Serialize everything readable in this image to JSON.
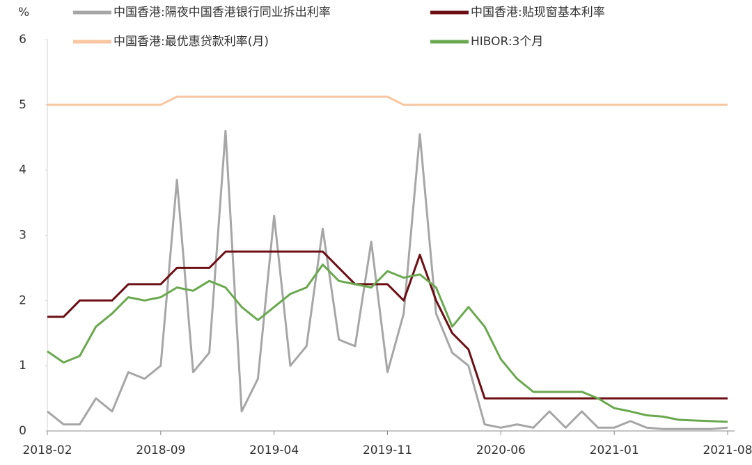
{
  "chart_data": {
    "type": "line",
    "y_label": "%",
    "x": [
      "2018-02",
      "2018-03",
      "2018-04",
      "2018-05",
      "2018-06",
      "2018-07",
      "2018-08",
      "2018-09",
      "2018-10",
      "2018-11",
      "2018-12",
      "2019-01",
      "2019-02",
      "2019-03",
      "2019-04",
      "2019-05",
      "2019-06",
      "2019-07",
      "2019-08",
      "2019-09",
      "2019-10",
      "2019-11",
      "2019-12",
      "2020-01",
      "2020-02",
      "2020-03",
      "2020-04",
      "2020-05",
      "2020-06",
      "2020-07",
      "2020-08",
      "2020-09",
      "2020-10",
      "2020-11",
      "2020-12",
      "2021-01",
      "2021-02",
      "2021-03",
      "2021-04",
      "2021-05",
      "2021-06",
      "2021-07",
      "2021-08"
    ],
    "xticks": [
      "2018-02",
      "2018-09",
      "2019-04",
      "2019-11",
      "2020-06",
      "2021-01",
      "2021-08"
    ],
    "ylim": [
      0,
      6
    ],
    "yticks": [
      0,
      1,
      2,
      3,
      4,
      5,
      6
    ],
    "series": [
      {
        "name": "中国香港:隔夜中国香港银行同业拆出利率",
        "color": "#a6a6a6",
        "values": [
          0.3,
          0.1,
          0.1,
          0.5,
          0.3,
          0.9,
          0.8,
          1.0,
          3.85,
          0.9,
          1.2,
          4.6,
          0.3,
          0.8,
          3.3,
          1.0,
          1.3,
          3.1,
          1.4,
          1.3,
          2.9,
          0.9,
          1.8,
          4.55,
          1.8,
          1.2,
          1.0,
          0.1,
          0.05,
          0.1,
          0.05,
          0.3,
          0.05,
          0.3,
          0.05,
          0.05,
          0.15,
          0.05,
          0.03,
          0.03,
          0.03,
          0.03,
          0.05
        ]
      },
      {
        "name": "中国香港:贴现窗基本利率",
        "color": "#6b0f14",
        "values": [
          1.75,
          1.75,
          2.0,
          2.0,
          2.0,
          2.25,
          2.25,
          2.25,
          2.5,
          2.5,
          2.5,
          2.75,
          2.75,
          2.75,
          2.75,
          2.75,
          2.75,
          2.75,
          2.5,
          2.25,
          2.25,
          2.25,
          2.0,
          2.7,
          2.0,
          1.5,
          1.25,
          0.5,
          0.5,
          0.5,
          0.5,
          0.5,
          0.5,
          0.5,
          0.5,
          0.5,
          0.5,
          0.5,
          0.5,
          0.5,
          0.5,
          0.5,
          0.5
        ]
      },
      {
        "name": "中国香港:最优惠贷款利率(月)",
        "color": "#f7c59f",
        "values": [
          5.0,
          5.0,
          5.0,
          5.0,
          5.0,
          5.0,
          5.0,
          5.0,
          5.125,
          5.125,
          5.125,
          5.125,
          5.125,
          5.125,
          5.125,
          5.125,
          5.125,
          5.125,
          5.125,
          5.125,
          5.125,
          5.125,
          5.0,
          5.0,
          5.0,
          5.0,
          5.0,
          5.0,
          5.0,
          5.0,
          5.0,
          5.0,
          5.0,
          5.0,
          5.0,
          5.0,
          5.0,
          5.0,
          5.0,
          5.0,
          5.0,
          5.0,
          5.0
        ]
      },
      {
        "name": "HIBOR:3个月",
        "color": "#6aa84f",
        "values": [
          1.22,
          1.05,
          1.15,
          1.6,
          1.8,
          2.05,
          2.0,
          2.05,
          2.2,
          2.15,
          2.3,
          2.2,
          1.9,
          1.7,
          1.9,
          2.1,
          2.2,
          2.55,
          2.3,
          2.25,
          2.2,
          2.45,
          2.35,
          2.4,
          2.2,
          1.6,
          1.9,
          1.6,
          1.1,
          0.8,
          0.6,
          0.6,
          0.6,
          0.6,
          0.5,
          0.35,
          0.3,
          0.24,
          0.22,
          0.17,
          0.16,
          0.15,
          0.14
        ]
      }
    ]
  }
}
